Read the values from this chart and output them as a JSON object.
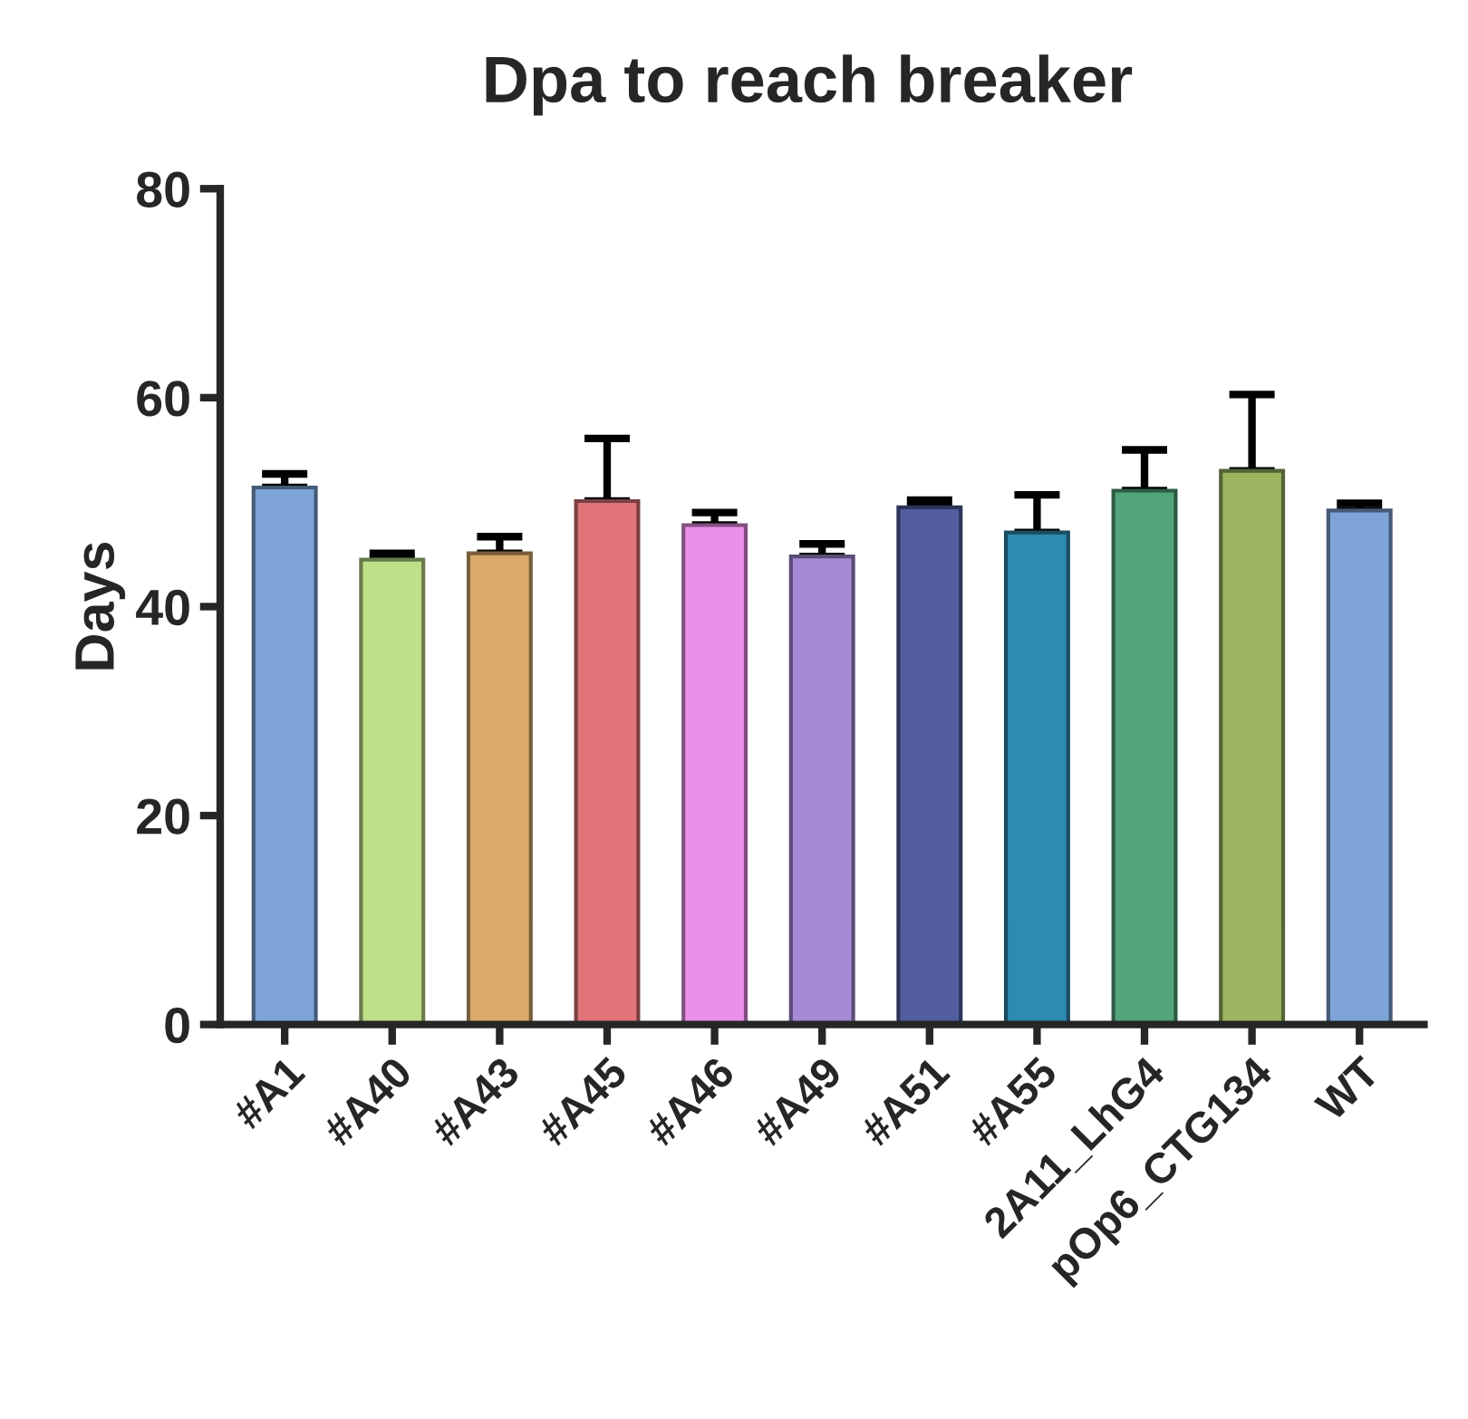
{
  "chart_data": {
    "type": "bar",
    "title": "Dpa to reach breaker",
    "ylabel": "Days",
    "categories": [
      "#A1",
      "#A40",
      "#A43",
      "#A45",
      "#A46",
      "#A49",
      "#A51",
      "#A55",
      "2A11_LhG4",
      "pOp6_CTG134",
      "WT"
    ],
    "values": [
      51.4,
      44.5,
      45.1,
      50.1,
      47.8,
      44.8,
      49.5,
      47.1,
      51.1,
      53.0,
      49.2
    ],
    "errors": [
      1.3,
      0.6,
      1.6,
      6.0,
      1.2,
      1.2,
      0.7,
      3.6,
      3.9,
      7.3,
      0.7
    ],
    "colors": [
      "#7ea4d8",
      "#bfe08a",
      "#dbab6c",
      "#e07479",
      "#ea90e8",
      "#a58ad6",
      "#525ea0",
      "#2e8ab0",
      "#52a57a",
      "#9bb561",
      "#7ea4d8"
    ],
    "ylim": [
      0,
      80
    ],
    "yticks": [
      0,
      20,
      40,
      60,
      80
    ],
    "grid": false
  }
}
